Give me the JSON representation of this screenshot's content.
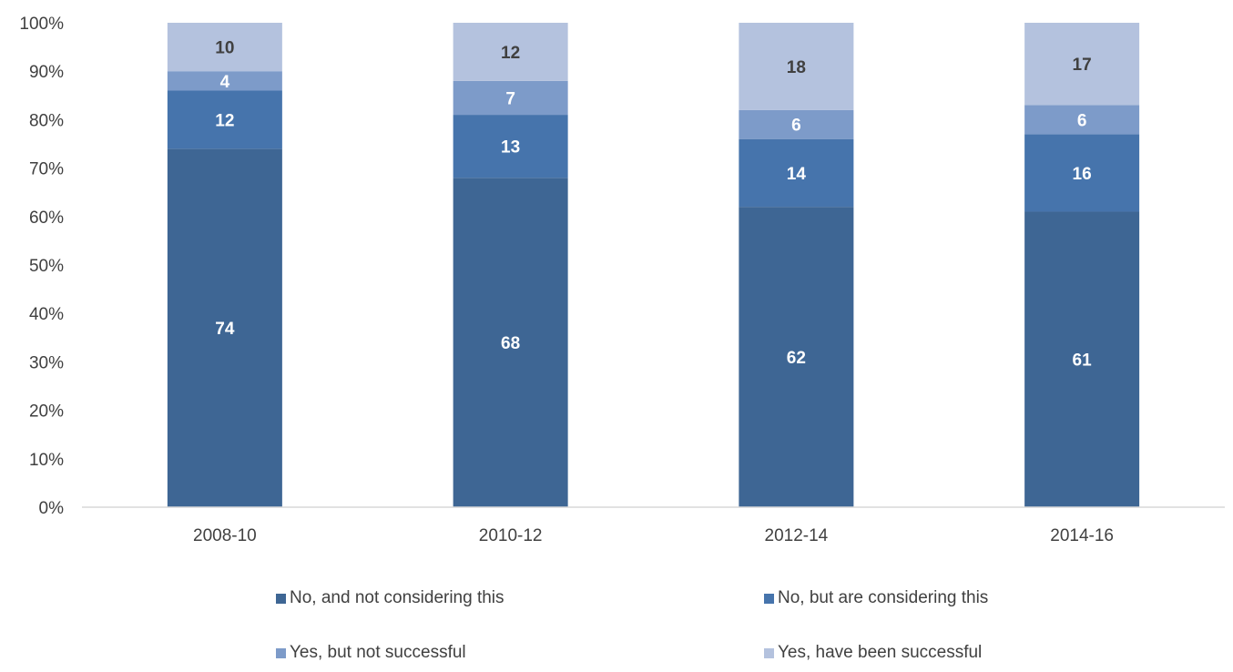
{
  "chart_data": {
    "type": "bar",
    "stacked": true,
    "percent_stacked": true,
    "categories": [
      "2008-10",
      "2010-12",
      "2012-14",
      "2014-16"
    ],
    "series": [
      {
        "name": "No, and not considering this",
        "values": [
          74,
          68,
          62,
          61
        ],
        "color": "#3E6694",
        "label_color": "#ffffff"
      },
      {
        "name": "No, but are considering this",
        "values": [
          12,
          13,
          14,
          16
        ],
        "color": "#4674AC",
        "label_color": "#ffffff"
      },
      {
        "name": "Yes, but not successful",
        "values": [
          4,
          7,
          6,
          6
        ],
        "color": "#7D9BC9",
        "label_color": "#ffffff"
      },
      {
        "name": "Yes, have been successful",
        "values": [
          10,
          12,
          18,
          17
        ],
        "color": "#B4C2DE",
        "label_color": "#404040"
      }
    ],
    "title": "",
    "xlabel": "",
    "ylabel": "",
    "ylim": [
      0,
      100
    ],
    "y_ticks": [
      "0%",
      "10%",
      "20%",
      "30%",
      "40%",
      "50%",
      "60%",
      "70%",
      "80%",
      "90%",
      "100%"
    ],
    "grid": false,
    "legend_position": "bottom"
  }
}
